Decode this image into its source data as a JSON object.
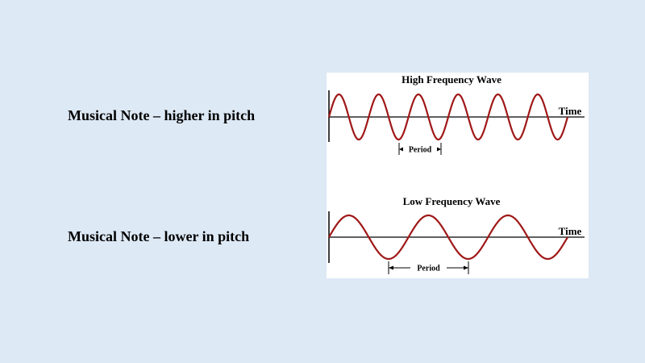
{
  "captions": {
    "high": "Musical Note – higher in pitch",
    "low": "Musical Note – lower in pitch"
  },
  "colors": {
    "background": "#dde9f5",
    "wave": "#a01818",
    "axis": "#000000"
  },
  "waves": {
    "high": {
      "title": "High Frequency Wave",
      "axis_label": "Time",
      "period_label": "Period",
      "cycles": 6
    },
    "low": {
      "title": "Low Frequency Wave",
      "axis_label": "Time",
      "period_label": "Period",
      "cycles": 3
    }
  }
}
